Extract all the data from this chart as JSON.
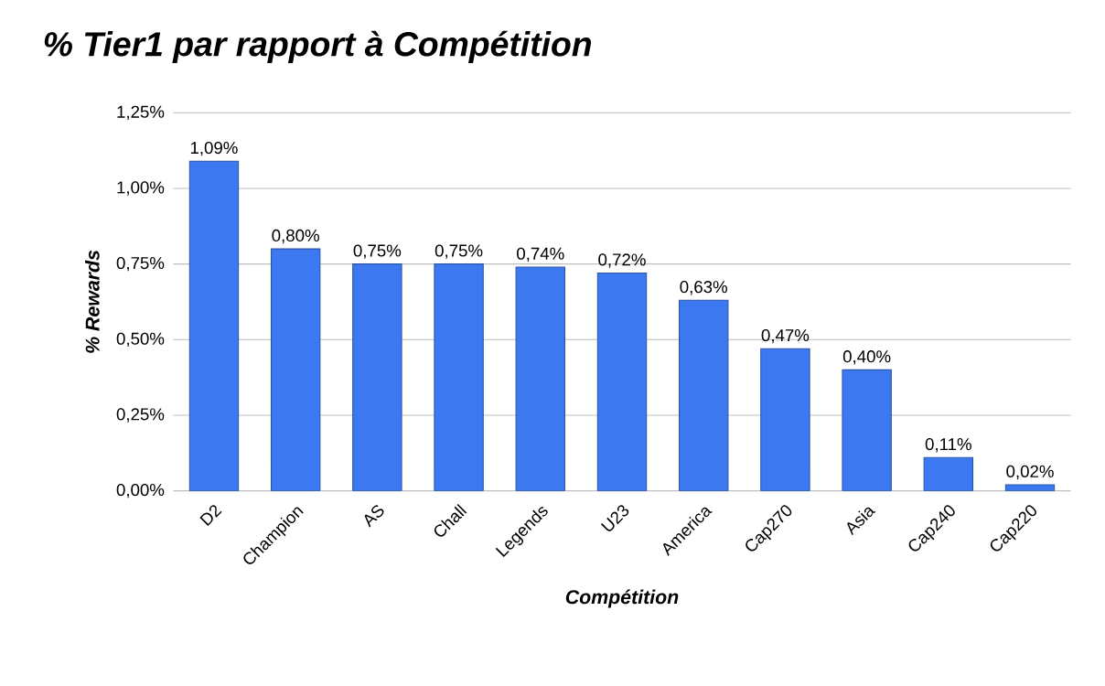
{
  "chart_data": {
    "type": "bar",
    "title": "% Tier1 par rapport à Compétition",
    "xlabel": "Compétition",
    "ylabel": "% Rewards",
    "categories": [
      "D2",
      "Champion",
      "AS",
      "Chall",
      "Legends",
      "U23",
      "America",
      "Cap270",
      "Asia",
      "Cap240",
      "Cap220"
    ],
    "values": [
      1.09,
      0.8,
      0.75,
      0.75,
      0.74,
      0.72,
      0.63,
      0.47,
      0.4,
      0.11,
      0.02
    ],
    "value_labels": [
      "1,09%",
      "0,80%",
      "0,75%",
      "0,75%",
      "0,74%",
      "0,72%",
      "0,63%",
      "0,47%",
      "0,40%",
      "0,11%",
      "0,02%"
    ],
    "color": "#3c78f0",
    "ylim": [
      0,
      1.25
    ],
    "yticks": [
      {
        "value": 0,
        "label": "0,00%"
      },
      {
        "value": 0.25,
        "label": "0,25%"
      },
      {
        "value": 0.5,
        "label": "0,50%"
      },
      {
        "value": 0.75,
        "label": "0,75%"
      },
      {
        "value": 1.0,
        "label": "1,00%"
      },
      {
        "value": 1.25,
        "label": "1,25%"
      }
    ],
    "grid": "y"
  }
}
